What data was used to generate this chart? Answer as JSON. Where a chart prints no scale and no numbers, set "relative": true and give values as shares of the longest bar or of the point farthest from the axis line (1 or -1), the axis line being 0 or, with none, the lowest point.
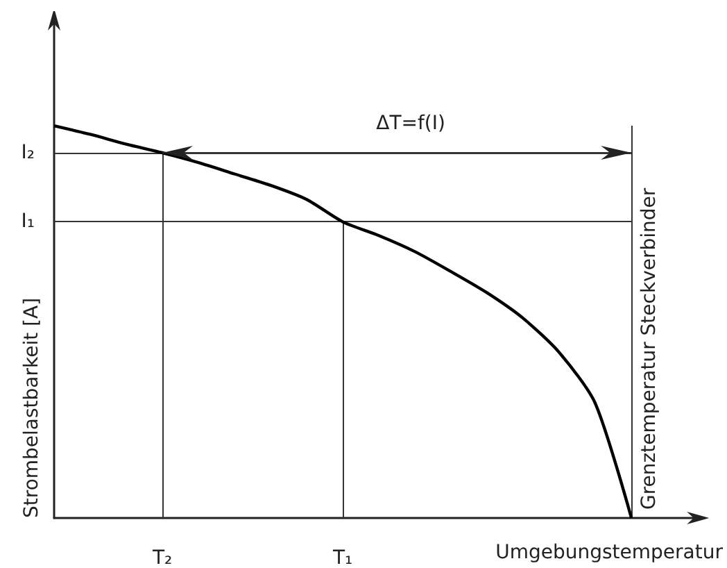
{
  "chart_data": {
    "type": "line",
    "xlabel": "Umgebungstemperatur",
    "ylabel": "Strombelastbarkeit [A]",
    "relative": true,
    "categories": [
      null,
      null,
      null,
      "T₂",
      null,
      null,
      null,
      null,
      "T₁",
      null,
      null,
      null,
      null,
      null,
      null,
      null,
      null,
      null,
      null
    ],
    "series": [
      {
        "color": "#000000",
        "values": [
          1.0,
          0.978,
          0.953,
          0.931,
          0.906,
          0.877,
          0.848,
          0.812,
          0.755,
          0.72,
          0.679,
          0.628,
          0.574,
          0.509,
          0.422,
          0.292,
          0,
          null,
          null
        ]
      }
    ],
    "ref_lines": [
      {
        "axis": "y",
        "value": 0.931,
        "label": "I₂"
      },
      {
        "axis": "y",
        "value": 0.755,
        "label": "I₁"
      }
    ],
    "annotations": [
      "ΔT=f(I)",
      "Grenztemperatur Steckverbinder"
    ],
    "grid": "x",
    "marker": "none",
    "line_style": "solid"
  }
}
